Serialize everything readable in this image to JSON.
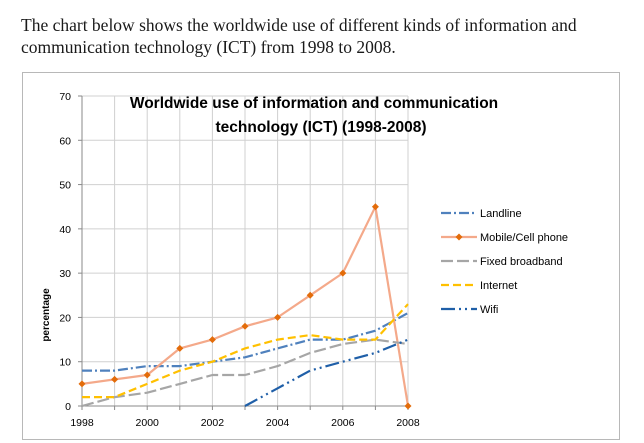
{
  "caption": "The chart below shows the worldwide use of different kinds of information and communication technology (ICT) from 1998 to 2008.",
  "chart_data": {
    "type": "line",
    "title_lines": [
      "Worldwide use of information and communication",
      "technology (ICT) (1998-2008)"
    ],
    "ylabel": "percentage",
    "xlabel": "",
    "ylim": [
      0,
      70
    ],
    "yticks": [
      0,
      10,
      20,
      30,
      40,
      50,
      60,
      70
    ],
    "xlim": [
      1998,
      2008
    ],
    "xticks": [
      1998,
      2000,
      2002,
      2004,
      2006,
      2008
    ],
    "grid": true,
    "legend_position": "right",
    "series": [
      {
        "name": "Landline",
        "color": "#4F81BD",
        "dash": "10,3,2,3",
        "marker": false,
        "x": [
          1998,
          1999,
          2000,
          2001,
          2002,
          2003,
          2004,
          2005,
          2006,
          2007,
          2008
        ],
        "y": [
          8,
          8,
          9,
          9,
          10,
          11,
          13,
          15,
          15,
          17,
          21
        ]
      },
      {
        "name": "Mobile/Cell phone",
        "color": "#F4A98A",
        "dash": "",
        "marker": true,
        "x": [
          1998,
          1999,
          2000,
          2001,
          2002,
          2003,
          2004,
          2005,
          2006,
          2007,
          2008
        ],
        "y": [
          5,
          6,
          7,
          13,
          15,
          18,
          20,
          25,
          30,
          45,
          0
        ]
      },
      {
        "name": "Fixed broadband",
        "color": "#A6A6A6",
        "dash": "12,4",
        "marker": false,
        "x": [
          1998,
          1999,
          2000,
          2001,
          2002,
          2003,
          2004,
          2005,
          2006,
          2007,
          2008
        ],
        "y": [
          0,
          2,
          3,
          5,
          7,
          7,
          9,
          12,
          14,
          15,
          14
        ]
      },
      {
        "name": "Internet",
        "color": "#FFC000",
        "dash": "8,4",
        "marker": false,
        "x": [
          1998,
          1999,
          2000,
          2001,
          2002,
          2003,
          2004,
          2005,
          2006,
          2007,
          2008
        ],
        "y": [
          2,
          2,
          5,
          8,
          10,
          13,
          15,
          16,
          15,
          15,
          23
        ]
      },
      {
        "name": "Wifi",
        "color": "#1F5FA8",
        "dash": "14,4,2,4,2,4",
        "marker": false,
        "x": [
          2003,
          2004,
          2005,
          2006,
          2007,
          2008
        ],
        "y": [
          0,
          4,
          8,
          10,
          12,
          15
        ]
      }
    ]
  }
}
